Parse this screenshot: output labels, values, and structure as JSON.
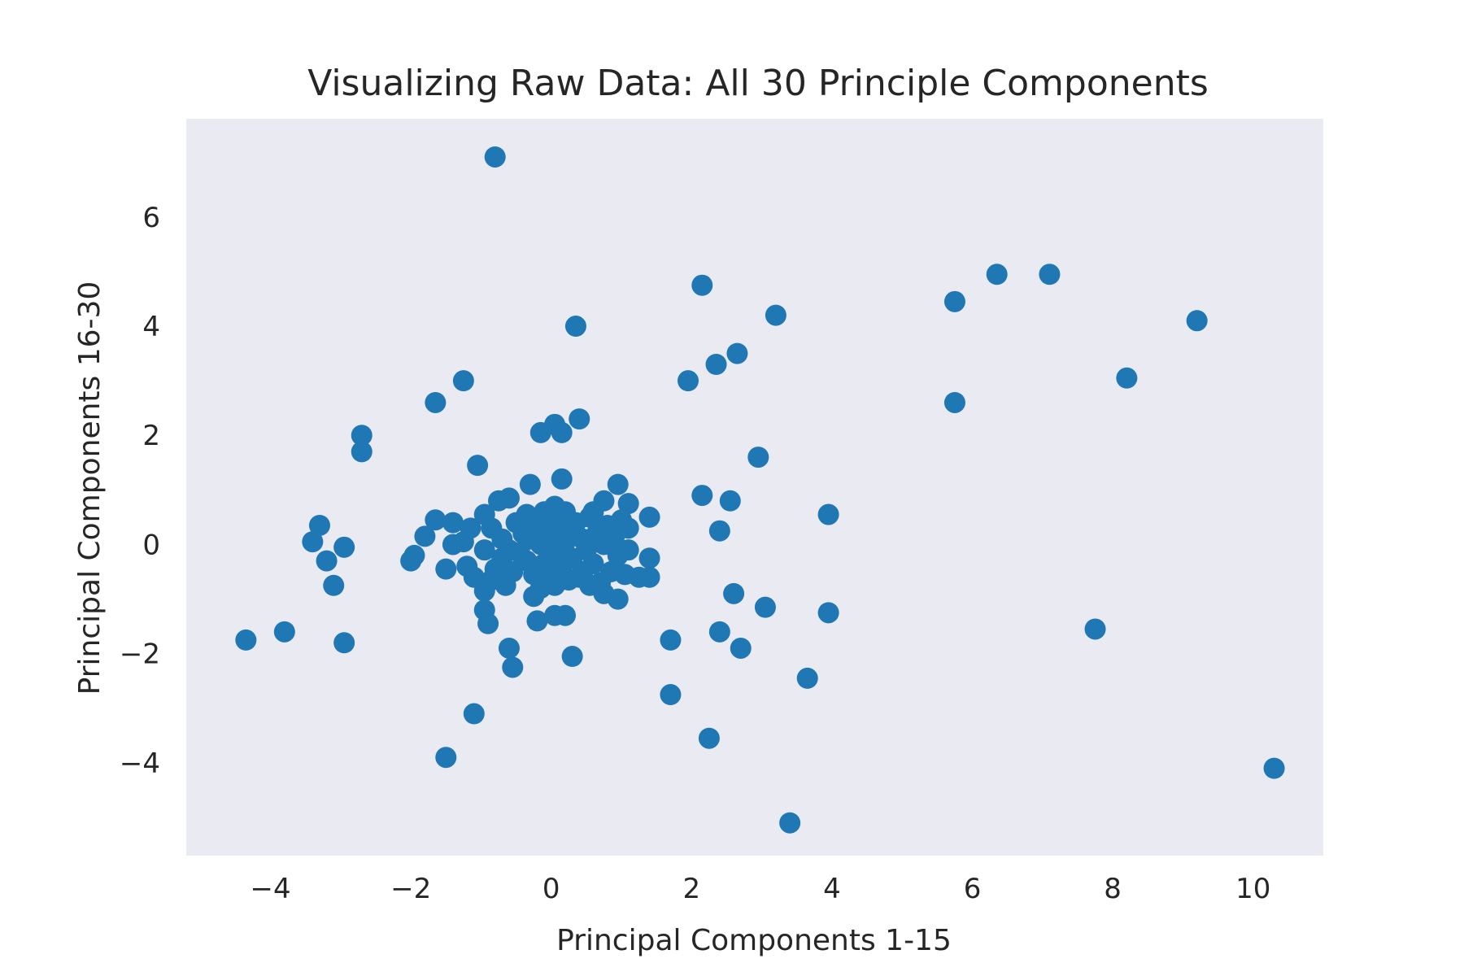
{
  "chart_data": {
    "type": "scatter",
    "title": "Visualizing Raw Data: All 30 Principle Components",
    "xlabel": "Principal Components 1-15",
    "ylabel": "Principal Components 16-30",
    "xlim": [
      -5.2,
      11.0
    ],
    "ylim": [
      -5.7,
      7.8
    ],
    "xticks": [
      -4,
      -2,
      0,
      2,
      4,
      6,
      8,
      10
    ],
    "yticks": [
      -4,
      -2,
      0,
      2,
      4,
      6
    ],
    "xtick_labels": [
      "−4",
      "−2",
      "0",
      "2",
      "4",
      "6",
      "8",
      "10"
    ],
    "ytick_labels": [
      "−4",
      "−2",
      "0",
      "2",
      "4",
      "6"
    ],
    "grid": false,
    "background": "#eaeaf2",
    "marker_color": "#1f77b4",
    "series": [
      {
        "points": [
          [
            -0.8,
            7.1
          ],
          [
            2.15,
            4.75
          ],
          [
            3.2,
            4.2
          ],
          [
            0.35,
            4.0
          ],
          [
            2.35,
            3.3
          ],
          [
            2.65,
            3.5
          ],
          [
            1.95,
            3.0
          ],
          [
            -1.25,
            3.0
          ],
          [
            -1.65,
            2.6
          ],
          [
            -2.7,
            2.0
          ],
          [
            -2.7,
            1.7
          ],
          [
            -0.15,
            2.05
          ],
          [
            0.05,
            2.2
          ],
          [
            0.15,
            2.05
          ],
          [
            0.4,
            2.3
          ],
          [
            5.75,
            4.45
          ],
          [
            6.35,
            4.95
          ],
          [
            7.1,
            4.95
          ],
          [
            9.2,
            4.1
          ],
          [
            8.2,
            3.05
          ],
          [
            5.75,
            2.6
          ],
          [
            2.95,
            1.6
          ],
          [
            -1.05,
            1.45
          ],
          [
            -0.3,
            1.1
          ],
          [
            0.15,
            1.2
          ],
          [
            0.95,
            1.1
          ],
          [
            2.15,
            0.9
          ],
          [
            2.55,
            0.8
          ],
          [
            3.95,
            0.55
          ],
          [
            2.4,
            0.25
          ],
          [
            1.4,
            0.5
          ],
          [
            1.1,
            0.75
          ],
          [
            0.75,
            0.8
          ],
          [
            1.4,
            -0.25
          ],
          [
            1.4,
            -0.6
          ],
          [
            -3.3,
            0.35
          ],
          [
            -3.4,
            0.05
          ],
          [
            -2.95,
            -0.05
          ],
          [
            -3.2,
            -0.3
          ],
          [
            -3.1,
            -0.75
          ],
          [
            -4.35,
            -1.75
          ],
          [
            -3.8,
            -1.6
          ],
          [
            -2.95,
            -1.8
          ],
          [
            -1.95,
            -0.2
          ],
          [
            -2.0,
            -0.3
          ],
          [
            -1.8,
            0.15
          ],
          [
            -1.65,
            0.45
          ],
          [
            -1.4,
            0.4
          ],
          [
            -1.4,
            0.0
          ],
          [
            -1.5,
            -0.45
          ],
          [
            -1.2,
            -0.4
          ],
          [
            -1.1,
            -0.6
          ],
          [
            -1.15,
            0.3
          ],
          [
            -0.95,
            0.55
          ],
          [
            -0.95,
            -0.85
          ],
          [
            -0.95,
            -1.2
          ],
          [
            -0.9,
            -1.45
          ],
          [
            -0.6,
            -1.9
          ],
          [
            -0.55,
            -2.25
          ],
          [
            -0.2,
            -1.4
          ],
          [
            0.05,
            -1.3
          ],
          [
            0.2,
            -1.3
          ],
          [
            0.3,
            -2.05
          ],
          [
            -1.1,
            -3.1
          ],
          [
            -1.5,
            -3.9
          ],
          [
            1.7,
            -1.75
          ],
          [
            1.7,
            -2.75
          ],
          [
            2.25,
            -3.55
          ],
          [
            2.4,
            -1.6
          ],
          [
            2.7,
            -1.9
          ],
          [
            2.6,
            -0.9
          ],
          [
            3.05,
            -1.15
          ],
          [
            3.95,
            -1.25
          ],
          [
            3.65,
            -2.45
          ],
          [
            3.4,
            -5.1
          ],
          [
            7.75,
            -1.55
          ],
          [
            10.3,
            -4.1
          ],
          [
            0.95,
            -1.0
          ],
          [
            -0.6,
            0.85
          ],
          [
            -0.75,
            0.8
          ],
          [
            0.05,
            0.7
          ],
          [
            -0.85,
            0.3
          ],
          [
            -0.7,
            0.1
          ],
          [
            -0.6,
            -0.1
          ],
          [
            -0.5,
            0.4
          ],
          [
            -0.4,
            0.2
          ],
          [
            -0.35,
            -0.3
          ],
          [
            -0.3,
            0.1
          ],
          [
            -0.25,
            -0.55
          ],
          [
            -0.2,
            0.3
          ],
          [
            -0.15,
            0.0
          ],
          [
            -0.1,
            -0.35
          ],
          [
            -0.05,
            0.45
          ],
          [
            0.0,
            0.15
          ],
          [
            0.05,
            -0.15
          ],
          [
            0.1,
            0.35
          ],
          [
            0.15,
            -0.45
          ],
          [
            0.2,
            0.05
          ],
          [
            0.25,
            0.25
          ],
          [
            0.3,
            -0.25
          ],
          [
            0.35,
            0.4
          ],
          [
            0.4,
            -0.6
          ],
          [
            0.45,
            0.1
          ],
          [
            0.5,
            -0.1
          ],
          [
            0.55,
            0.5
          ],
          [
            0.6,
            -0.35
          ],
          [
            0.65,
            0.2
          ],
          [
            0.7,
            -0.7
          ],
          [
            0.75,
            0.0
          ],
          [
            0.8,
            0.35
          ],
          [
            0.85,
            -0.5
          ],
          [
            0.9,
            0.15
          ],
          [
            0.95,
            -0.2
          ],
          [
            1.0,
            0.45
          ],
          [
            1.05,
            -0.55
          ],
          [
            1.1,
            0.3
          ],
          [
            1.1,
            -0.1
          ],
          [
            -0.8,
            -0.45
          ],
          [
            -0.7,
            -0.25
          ],
          [
            -0.65,
            -0.75
          ],
          [
            -0.55,
            -0.5
          ],
          [
            -0.45,
            -0.15
          ],
          [
            -0.35,
            0.55
          ],
          [
            -0.15,
            -0.8
          ],
          [
            -0.05,
            -0.6
          ],
          [
            0.05,
            -0.75
          ],
          [
            0.25,
            -0.65
          ],
          [
            0.45,
            -0.5
          ],
          [
            0.55,
            -0.75
          ],
          [
            0.75,
            -0.9
          ],
          [
            -0.95,
            -0.1
          ],
          [
            -0.85,
            -0.65
          ],
          [
            -0.1,
            0.6
          ],
          [
            0.2,
            0.6
          ],
          [
            0.6,
            0.6
          ],
          [
            -0.25,
            -0.95
          ],
          [
            1.25,
            -0.6
          ],
          [
            -1.25,
            0.05
          ]
        ]
      }
    ]
  }
}
